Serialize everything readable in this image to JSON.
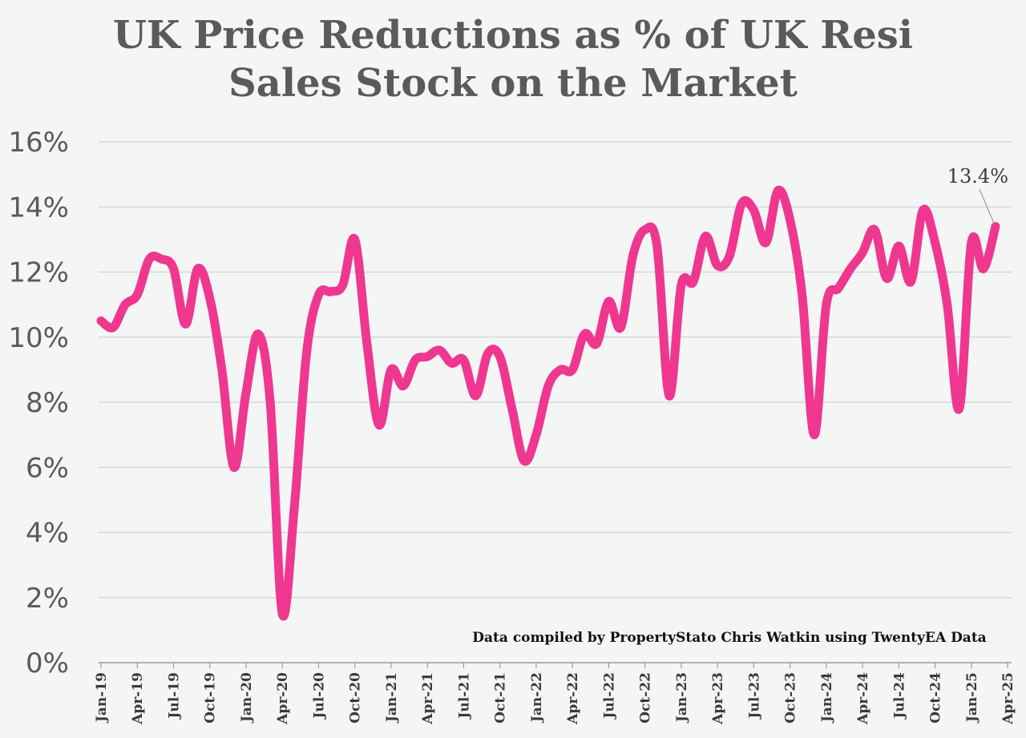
{
  "chart_data": {
    "type": "line",
    "title_lines": [
      "UK Price Reductions as % of UK Resi",
      "Sales Stock on the Market"
    ],
    "xlabel": "",
    "ylabel": "",
    "ylim": [
      0,
      16
    ],
    "yticks": [
      "0%",
      "2%",
      "4%",
      "6%",
      "8%",
      "10%",
      "12%",
      "14%",
      "16%"
    ],
    "xticks": [
      "Jan-19",
      "Apr-19",
      "Jul-19",
      "Oct-19",
      "Jan-20",
      "Apr-20",
      "Jul-20",
      "Oct-20",
      "Jan-21",
      "Apr-21",
      "Jul-21",
      "Oct-21",
      "Jan-22",
      "Apr-22",
      "Jul-22",
      "Oct-22",
      "Jan-23",
      "Apr-23",
      "Jul-23",
      "Oct-23",
      "Jan-24",
      "Apr-24",
      "Jul-24",
      "Oct-24",
      "Jan-25",
      "Apr-25"
    ],
    "grid": true,
    "line_color": "#f03790",
    "series": [
      {
        "name": "",
        "values": [
          10.5,
          10.3,
          11.0,
          11.3,
          12.4,
          12.4,
          12.1,
          10.4,
          12.1,
          11.2,
          9.0,
          6.0,
          8.3,
          10.1,
          8.0,
          1.5,
          4.8,
          9.5,
          11.3,
          11.4,
          11.6,
          13.0,
          9.8,
          7.3,
          9.0,
          8.5,
          9.3,
          9.4,
          9.6,
          9.2,
          9.3,
          8.2,
          9.5,
          9.4,
          7.8,
          6.2,
          7.0,
          8.5,
          9.0,
          9.0,
          10.1,
          9.8,
          11.1,
          10.3,
          12.5,
          13.3,
          12.8,
          8.2,
          11.6,
          11.7,
          13.1,
          12.2,
          12.5,
          14.1,
          13.9,
          12.9,
          14.5,
          13.6,
          11.3,
          7.0,
          11.0,
          11.5,
          12.1,
          12.6,
          13.3,
          11.8,
          12.8,
          11.7,
          13.9,
          12.9,
          11.0,
          7.8,
          12.9,
          12.1,
          13.4
        ]
      }
    ],
    "annotation": "13.4%",
    "credit": "Data compiled by PropertyStato Chris Watkin using TwentyEA Data"
  }
}
